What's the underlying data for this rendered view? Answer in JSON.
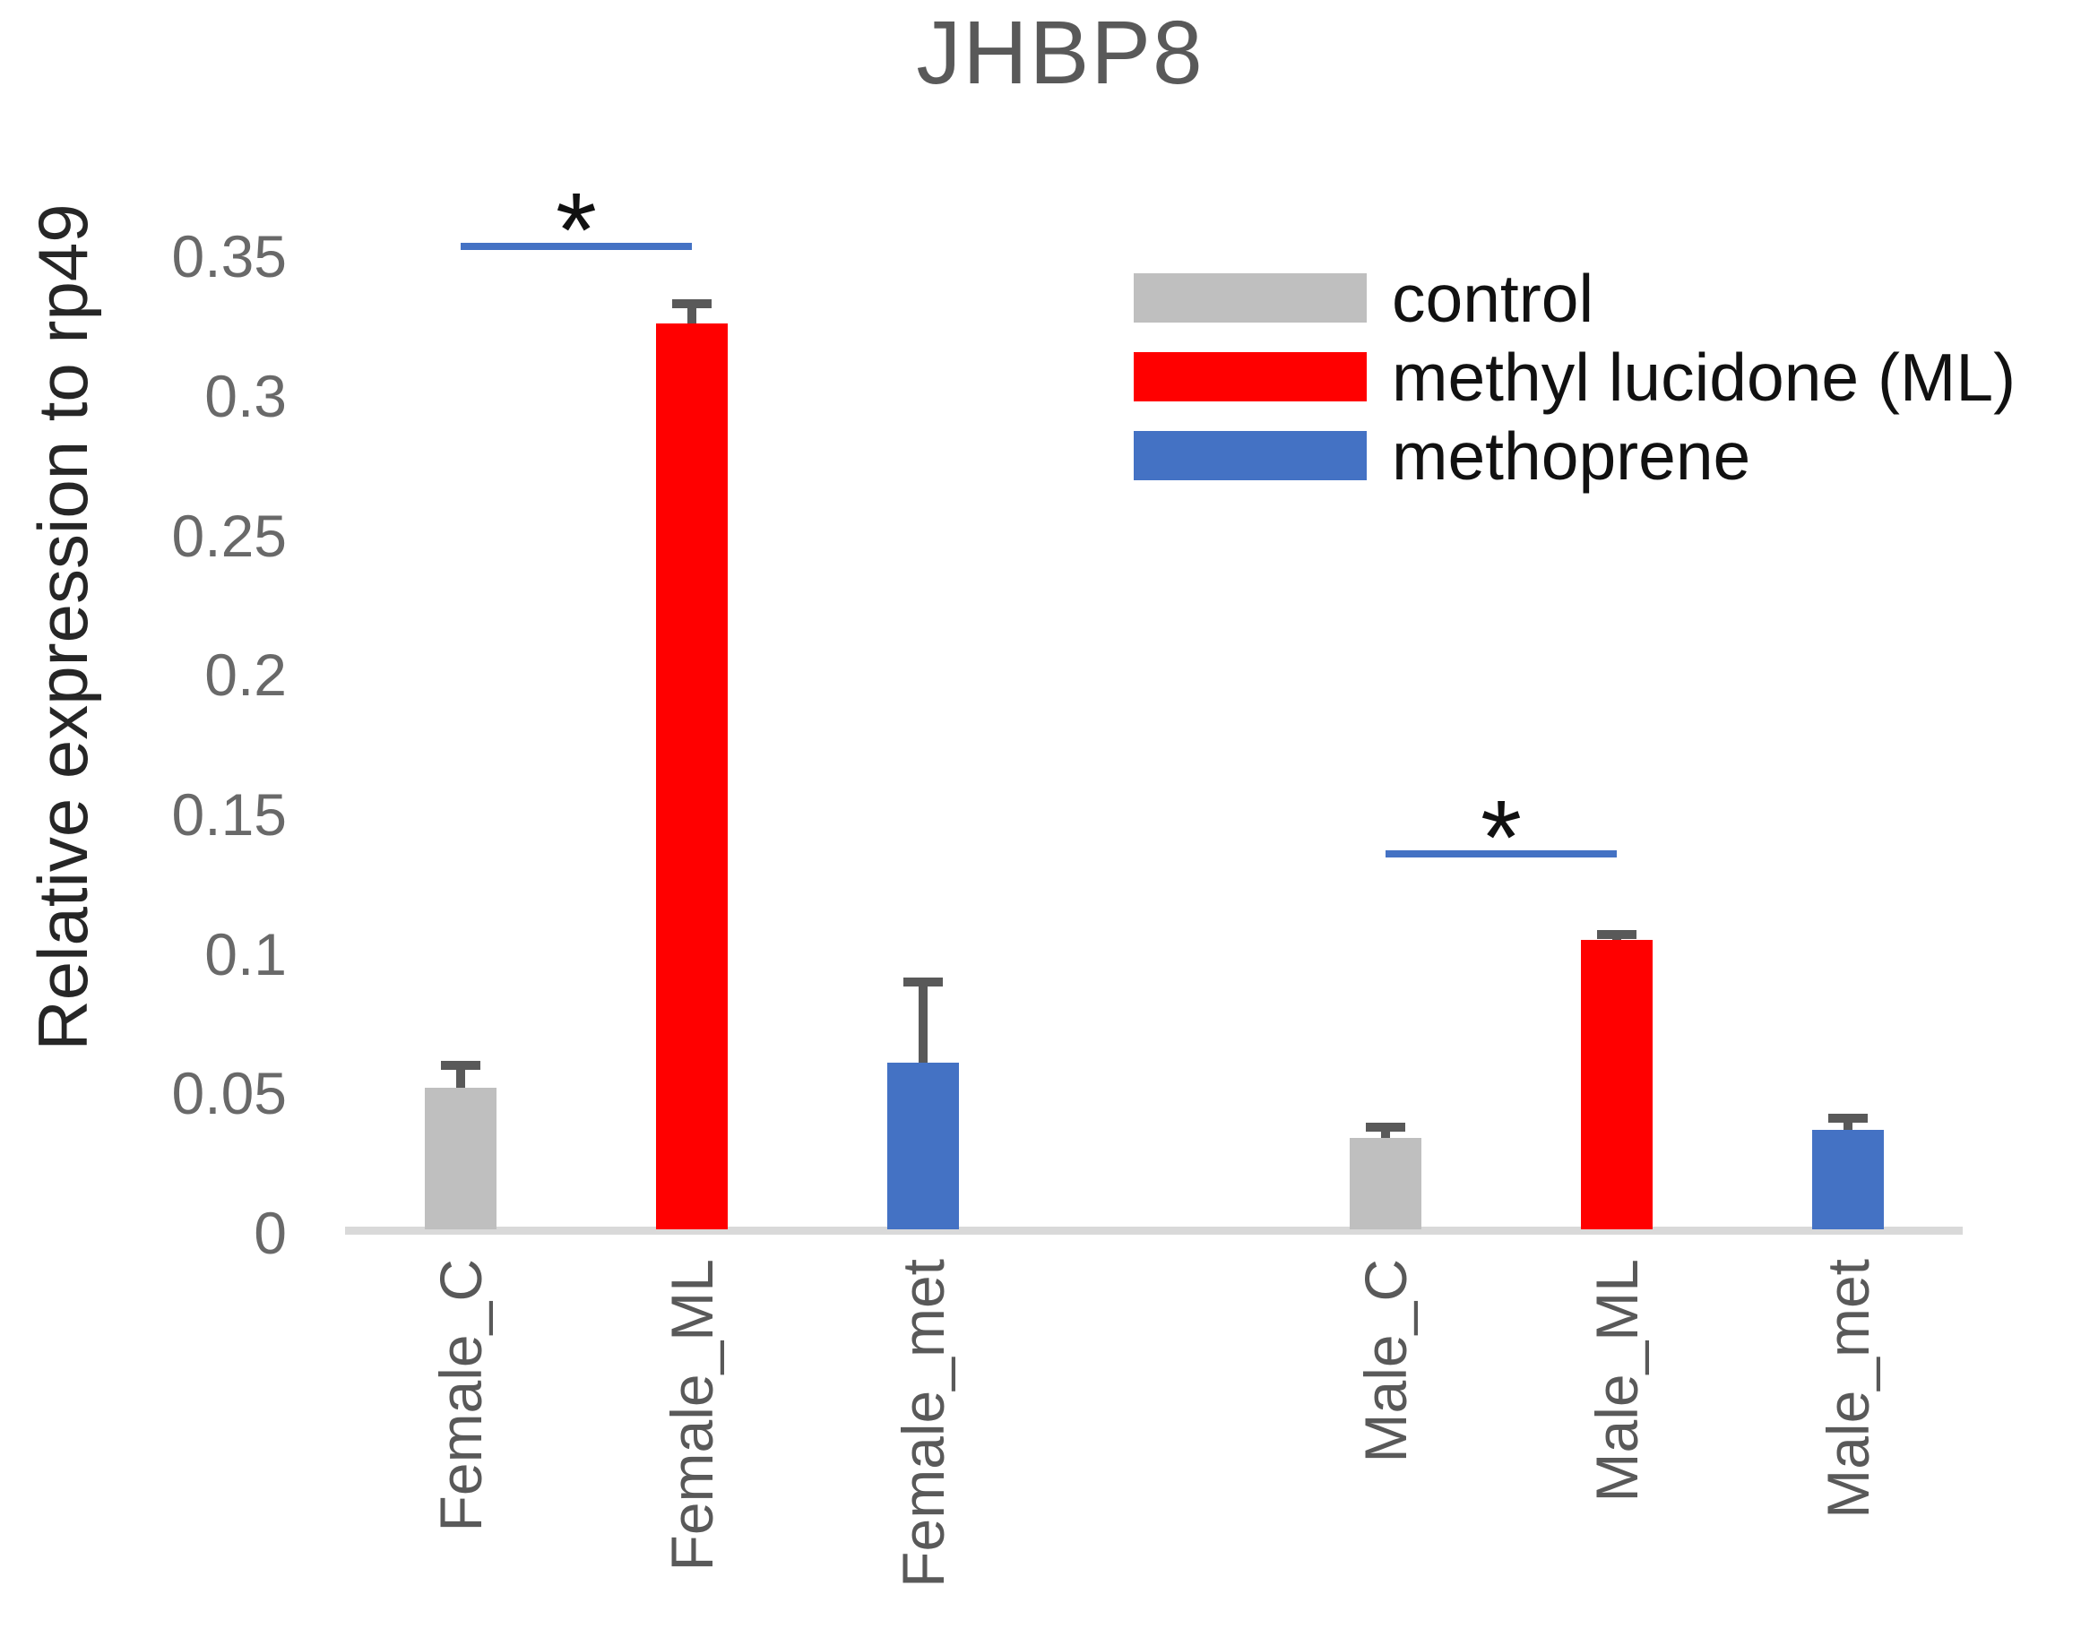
{
  "title": "JHBP8",
  "y_axis": {
    "label": "Relative expression to rp49",
    "tick_labels": [
      "0",
      "0.05",
      "0.1",
      "0.15",
      "0.2",
      "0.25",
      "0.3",
      "0.35"
    ],
    "tick_values": [
      0,
      0.05,
      0.1,
      0.15,
      0.2,
      0.25,
      0.3,
      0.35
    ]
  },
  "legend": [
    {
      "label": "control",
      "color": "#bfbfbf"
    },
    {
      "label": "methyl lucidone (ML)",
      "color": "#ff0000"
    },
    {
      "label": "methoprene",
      "color": "#4472c4"
    }
  ],
  "chart_data": {
    "type": "bar",
    "title": "JHBP8",
    "xlabel": "",
    "ylabel": "Relative expression to rp49",
    "ylim": [
      0,
      0.37
    ],
    "grid": false,
    "legend_position": "upper right",
    "categories": [
      "Female_C",
      "Female_ML",
      "Female_met",
      "Male_C",
      "Male_ML",
      "Male_met"
    ],
    "series_by_category": [
      "control",
      "methyl lucidone (ML)",
      "methoprene",
      "control",
      "methyl lucidone (ML)",
      "methoprene"
    ],
    "values": [
      0.051,
      0.325,
      0.06,
      0.033,
      0.104,
      0.036
    ],
    "errors_plus": [
      0.008,
      0.007,
      0.029,
      0.004,
      0.002,
      0.004
    ],
    "bar_colors": [
      "#bfbfbf",
      "#ff0000",
      "#4472c4",
      "#bfbfbf",
      "#ff0000",
      "#4472c4"
    ],
    "annotations": [
      {
        "label": "*",
        "from": "Female_C",
        "to": "Female_ML",
        "line_y": 0.354,
        "significant": true
      },
      {
        "label": "*",
        "from": "Male_C",
        "to": "Male_ML",
        "line_y": 0.136,
        "significant": true
      }
    ]
  },
  "colors": {
    "axis_line": "#d9d9d9",
    "tick_text": "#696969",
    "x_label_text": "#595959",
    "title_text": "#595959",
    "y_title_text": "#262626",
    "error_bar": "#595959",
    "significance_line": "#4472c4",
    "significance_star": "#111111",
    "background": "#ffffff"
  }
}
